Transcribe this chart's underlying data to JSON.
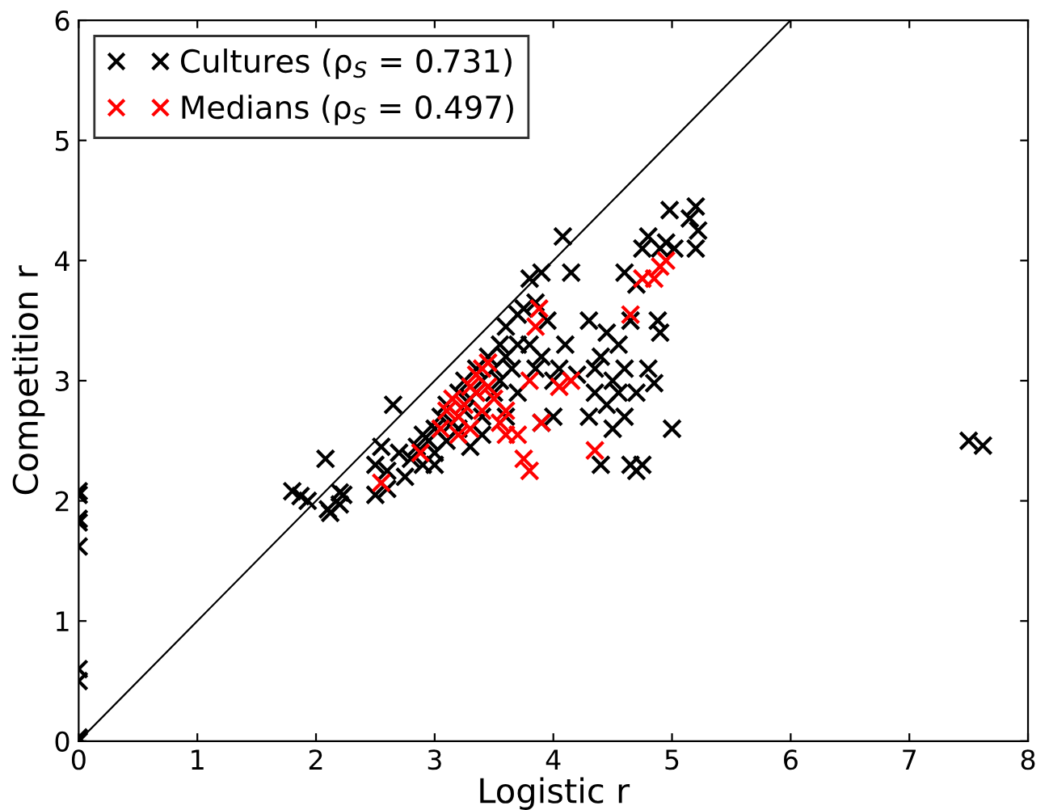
{
  "chart_data": {
    "type": "scatter",
    "xlabel": "Logistic r",
    "ylabel": "Competition r",
    "xlim": [
      0,
      8
    ],
    "ylim": [
      0,
      6
    ],
    "xticks": [
      0,
      1,
      2,
      3,
      4,
      5,
      6,
      7,
      8
    ],
    "yticks": [
      0,
      1,
      2,
      3,
      4,
      5,
      6
    ],
    "grid": false,
    "legend": "top left",
    "series": [
      {
        "type": "line",
        "color": "#000000",
        "marker": "none",
        "line_style": "solid",
        "x": [
          0,
          6
        ],
        "values": [
          0,
          6
        ]
      },
      {
        "name": "Cultures (ρ$_{S}$ = 0.731)",
        "color": "#000000",
        "marker": "cross",
        "x": [
          0,
          0,
          0,
          0,
          0,
          0,
          0,
          0,
          0,
          1.8,
          1.87,
          1.93,
          2.08,
          2.1,
          2.12,
          2.2,
          2.23,
          2.5,
          2.5,
          2.55,
          2.6,
          2.6,
          2.65,
          2.7,
          2.75,
          2.8,
          2.85,
          2.9,
          2.9,
          2.95,
          3.0,
          3.0,
          3.05,
          3.1,
          3.1,
          3.15,
          3.2,
          3.2,
          3.25,
          3.25,
          3.3,
          3.3,
          3.35,
          3.35,
          3.4,
          3.4,
          3.45,
          3.5,
          3.5,
          3.55,
          3.55,
          3.6,
          3.6,
          3.65,
          3.7,
          3.7,
          3.75,
          3.8,
          3.8,
          3.85,
          3.85,
          3.9,
          3.9,
          3.95,
          4.0,
          4.05,
          4.08,
          4.1,
          4.15,
          4.2,
          4.3,
          4.3,
          4.35,
          4.35,
          4.4,
          4.4,
          4.45,
          4.45,
          4.5,
          4.5,
          4.55,
          4.55,
          4.6,
          4.6,
          4.65,
          4.65,
          4.7,
          4.7,
          4.7,
          4.75,
          4.75,
          4.8,
          4.8,
          4.85,
          4.88,
          4.9,
          4.98,
          5.0,
          5.02,
          5.15,
          5.2,
          5.2,
          5.22,
          7.5,
          7.62,
          3.6,
          3.7,
          3.9,
          4.0,
          3.0,
          3.4,
          2.2,
          4.9,
          4.6,
          4.95
        ],
        "values": [
          2.08,
          2.05,
          1.85,
          1.82,
          1.62,
          0.6,
          0.5,
          0.03,
          0.0,
          2.08,
          2.04,
          2.0,
          2.35,
          1.93,
          1.9,
          2.07,
          2.05,
          2.3,
          2.05,
          2.45,
          2.25,
          2.1,
          2.8,
          2.4,
          2.2,
          2.35,
          2.45,
          2.55,
          2.3,
          2.5,
          2.6,
          2.4,
          2.7,
          2.8,
          2.5,
          2.65,
          2.9,
          2.6,
          3.0,
          2.75,
          2.85,
          2.45,
          3.1,
          2.9,
          3.0,
          2.7,
          3.2,
          3.1,
          2.9,
          3.3,
          3.0,
          3.2,
          3.45,
          3.1,
          3.55,
          3.3,
          3.6,
          3.85,
          3.3,
          3.65,
          3.1,
          3.9,
          3.2,
          3.5,
          3.0,
          3.1,
          4.2,
          3.3,
          3.9,
          3.05,
          3.5,
          2.7,
          2.9,
          3.1,
          3.2,
          2.3,
          3.4,
          2.8,
          3.0,
          2.6,
          3.3,
          2.9,
          3.1,
          2.7,
          3.5,
          2.3,
          2.25,
          3.8,
          2.9,
          4.1,
          2.3,
          4.2,
          3.1,
          2.98,
          3.5,
          4.1,
          4.42,
          2.6,
          4.1,
          4.35,
          4.45,
          4.1,
          4.25,
          2.5,
          2.46,
          2.7,
          2.9,
          2.65,
          2.7,
          2.3,
          2.55,
          1.97,
          3.4,
          3.9,
          4.15
        ]
      },
      {
        "name": "Medians (ρ$_{S}$ = 0.497)",
        "color": "#ff0000",
        "marker": "cross",
        "x": [
          2.55,
          2.88,
          3.05,
          3.1,
          3.15,
          3.2,
          3.25,
          3.3,
          3.35,
          3.35,
          3.4,
          3.4,
          3.45,
          3.45,
          3.5,
          3.55,
          3.6,
          3.6,
          3.7,
          3.75,
          3.8,
          3.85,
          3.88,
          3.8,
          3.9,
          4.05,
          4.15,
          4.35,
          4.65,
          4.75,
          4.8,
          4.85,
          4.9,
          4.95,
          3.3,
          3.2
        ],
        "values": [
          2.15,
          2.4,
          2.6,
          2.75,
          2.85,
          2.7,
          2.8,
          2.95,
          2.9,
          3.05,
          3.1,
          2.75,
          3.15,
          2.95,
          2.85,
          2.65,
          2.75,
          2.55,
          2.55,
          2.35,
          2.25,
          3.45,
          3.6,
          3.0,
          2.65,
          2.95,
          3.0,
          2.42,
          3.55,
          3.85,
          null,
          3.85,
          3.95,
          4.0,
          2.6,
          2.55
        ]
      }
    ]
  }
}
